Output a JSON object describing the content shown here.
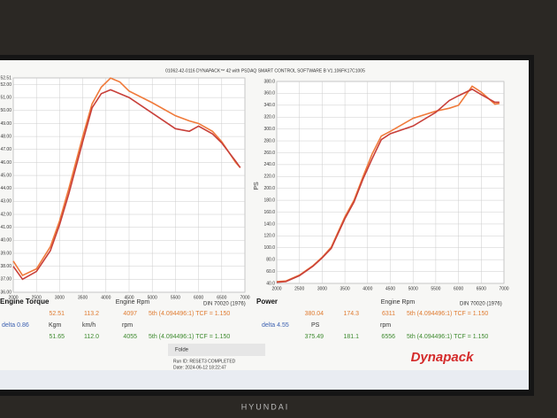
{
  "header": "01062-42-0116 DYNAPACK™ 42 with PSDAQ SMART CONTROL SOFTWARE B V1.106FK17C1005",
  "chart_data": [
    {
      "type": "line",
      "title": "Engine Torque",
      "x_label": "Engine Rpm",
      "standard": "DIN 70020 (1976)",
      "grid": true,
      "x": [
        2000,
        2200,
        2500,
        2800,
        3000,
        3200,
        3500,
        3700,
        3900,
        4100,
        4300,
        4500,
        5000,
        5500,
        5800,
        6000,
        6300,
        6500,
        6800,
        6900
      ],
      "series": [
        {
          "color": "#f07a3a",
          "values": [
            38.4,
            37.3,
            37.8,
            39.5,
            41.5,
            44,
            48,
            50.5,
            51.8,
            52.5,
            52.2,
            51.5,
            50.6,
            49.6,
            49.2,
            49.0,
            48.4,
            47.6,
            46.0,
            45.6
          ]
        },
        {
          "color": "#c8403a",
          "values": [
            38.0,
            37.0,
            37.6,
            39.2,
            41.2,
            43.6,
            47.6,
            50.2,
            51.3,
            51.6,
            51.3,
            51.0,
            49.8,
            48.6,
            48.4,
            48.8,
            48.2,
            47.5,
            46.1,
            45.6
          ]
        }
      ],
      "xlim": [
        2000,
        7000
      ],
      "xticks": [
        2000,
        2500,
        3000,
        3500,
        4000,
        4500,
        5000,
        5500,
        6000,
        6500,
        7000
      ],
      "ylim": [
        36,
        52.51
      ],
      "yticks": [
        52.51,
        {
          "value": 52,
          "label": "52.00"
        },
        {
          "value": 51,
          "label": "51.00"
        },
        {
          "value": 50,
          "label": "50.00"
        },
        {
          "value": 49,
          "label": "49.00"
        },
        {
          "value": 48,
          "label": "48.00"
        },
        {
          "value": 47,
          "label": "47.00"
        },
        {
          "value": 46,
          "label": "46.00"
        },
        {
          "value": 45,
          "label": "45.00"
        },
        {
          "value": 44,
          "label": "44.00"
        },
        {
          "value": 43,
          "label": "43.00"
        },
        {
          "value": 42,
          "label": "42.00"
        },
        {
          "value": 41,
          "label": "41.00"
        },
        {
          "value": 40,
          "label": "40.00"
        },
        {
          "value": 39,
          "label": "39.00"
        },
        {
          "value": 38,
          "label": "38.00"
        },
        {
          "value": 37,
          "label": "37.00"
        },
        {
          "value": 36,
          "label": "36.00"
        }
      ]
    },
    {
      "type": "line",
      "title": "Power",
      "x_label": "Engine Rpm",
      "y_label": "PS",
      "standard": "DIN 70020 (1976)",
      "grid": true,
      "x": [
        2000,
        2200,
        2500,
        2800,
        3000,
        3200,
        3500,
        3700,
        3900,
        4100,
        4300,
        4500,
        5000,
        5500,
        5800,
        6000,
        6300,
        6500,
        6800,
        6900
      ],
      "series": [
        {
          "color": "#f07a3a",
          "values": [
            43,
            44,
            54,
            70,
            84,
            101,
            152,
            180,
            220,
            258,
            288,
            296,
            318,
            330,
            335,
            340,
            372,
            362,
            342,
            343
          ]
        },
        {
          "color": "#c8403a",
          "values": [
            42,
            43,
            53,
            69,
            83,
            99,
            149,
            177,
            216,
            250,
            282,
            292,
            305,
            328,
            348,
            356,
            367,
            358,
            345,
            345
          ]
        }
      ],
      "xlim": [
        2000,
        7000
      ],
      "xticks": [
        2000,
        2500,
        3000,
        3500,
        4000,
        4500,
        5000,
        5500,
        6000,
        6500,
        7000
      ],
      "ylim": [
        40,
        380
      ],
      "yticks": [
        {
          "value": 380,
          "label": "380.0"
        },
        {
          "value": 360,
          "label": "360.0"
        },
        {
          "value": 340,
          "label": "340.0"
        },
        {
          "value": 320,
          "label": "320.0"
        },
        {
          "value": 300,
          "label": "300.0"
        },
        {
          "value": 280,
          "label": "280.0"
        },
        {
          "value": 260,
          "label": "260.0"
        },
        {
          "value": 240,
          "label": "240.0"
        },
        {
          "value": 220,
          "label": "220.0"
        },
        {
          "value": 200,
          "label": "200.0"
        },
        {
          "value": 180,
          "label": "180.0"
        },
        {
          "value": 160,
          "label": "160.0"
        },
        {
          "value": 140,
          "label": "140.0"
        },
        {
          "value": 120,
          "label": "120.0"
        },
        {
          "value": 100,
          "label": "100.0"
        },
        {
          "value": 80,
          "label": "80.0"
        },
        {
          "value": 60,
          "label": "60.0"
        },
        {
          "value": 40,
          "label": "40.0"
        }
      ]
    }
  ],
  "readouts": [
    {
      "run1": [
        "52.51",
        "113.2",
        "4097",
        "5th (4.094496:1) TCF = 1.150"
      ],
      "delta": "delta 0.86",
      "units": [
        "Kgm",
        "km/h",
        "rpm"
      ],
      "run2": [
        "51.65",
        "112.0",
        "4055",
        "5th (4.094496:1) TCF = 1.150"
      ]
    },
    {
      "run1": [
        "380.04",
        "174.3",
        "6311",
        "5th (4.094496:1) TCF = 1.150"
      ],
      "delta": "delta 4.55",
      "units": [
        "PS",
        "rpm"
      ],
      "run2": [
        "375.49",
        "181.1",
        "6556",
        "5th (4.094496:1) TCF = 1.150"
      ]
    }
  ],
  "footer": {
    "folder": "Folde",
    "run": "Run ID: RESET3 COMPLETED",
    "date": "Date: 2024-06-12 18:22:47",
    "logo": "Dynapack",
    "brand": "HYUNDAI"
  }
}
